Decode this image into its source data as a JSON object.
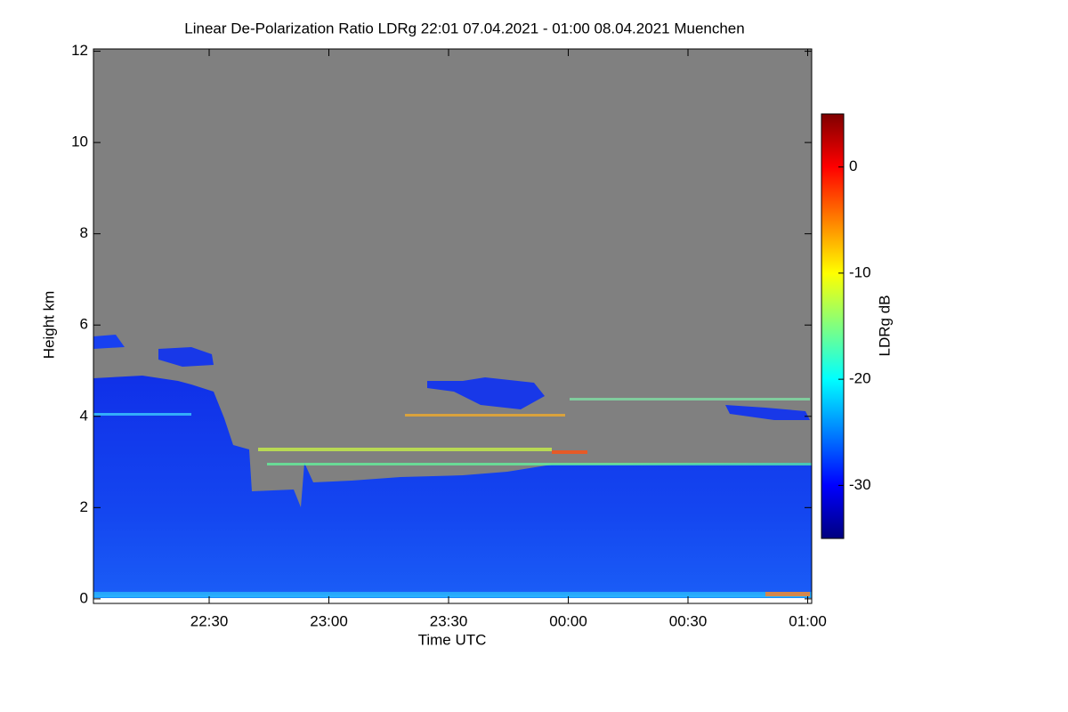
{
  "chart_data": {
    "type": "heatmap",
    "title": "Linear De-Polarization Ratio LDRg   22:01 07.04.2021 - 01:00 08.04.2021 Muenchen",
    "xlabel": "Time UTC",
    "ylabel": "Height km",
    "colorbar_label": "LDRg dB",
    "xlim": [
      1,
      181
    ],
    "xticks": [
      {
        "value": 30,
        "label": "22:30"
      },
      {
        "value": 60,
        "label": "23:00"
      },
      {
        "value": 90,
        "label": "23:30"
      },
      {
        "value": 120,
        "label": "00:00"
      },
      {
        "value": 150,
        "label": "00:30"
      },
      {
        "value": 180,
        "label": "01:00"
      }
    ],
    "ylim": [
      -0.1,
      12.05
    ],
    "yticks": [
      0,
      2,
      4,
      6,
      8,
      10,
      12
    ],
    "clim": [
      -35,
      5
    ],
    "cticks": [
      0,
      -10,
      -20,
      -30
    ],
    "colormap": [
      "#00007f",
      "#0000ff",
      "#0080ff",
      "#00ffff",
      "#80ff80",
      "#ffff00",
      "#ff8000",
      "#ff0000",
      "#7f0000"
    ],
    "background": "#808080"
  }
}
